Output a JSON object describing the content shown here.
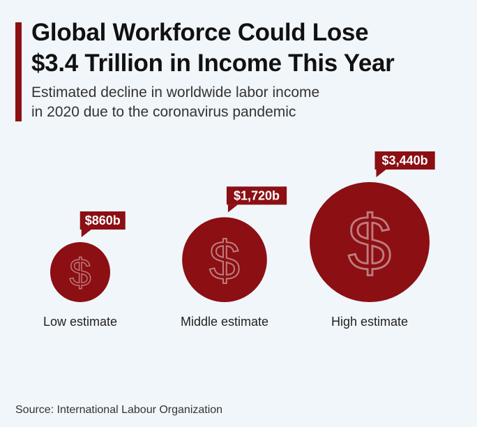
{
  "header": {
    "title_line1": "Global Workforce Could Lose",
    "title_line2": "$3.4 Trillion in Income This Year",
    "subtitle_line1": "Estimated decline in worldwide labor income",
    "subtitle_line2": "in 2020 due to the coronavirus pandemic"
  },
  "footer": {
    "source": "Source: International Labour Organization"
  },
  "colors": {
    "accent": "#8b0f13",
    "bubble": "#8b0f13",
    "label_bg": "#8b0f13",
    "background": "#f1f6fa"
  },
  "chart_data": {
    "type": "bubble",
    "unit": "billion USD",
    "categories": [
      "Low estimate",
      "Middle estimate",
      "High estimate"
    ],
    "values": [
      860,
      1720,
      3440
    ],
    "data_labels": [
      "$860b",
      "$1,720b",
      "$3,440b"
    ],
    "marker_icon": "dollar-sign-icon"
  }
}
